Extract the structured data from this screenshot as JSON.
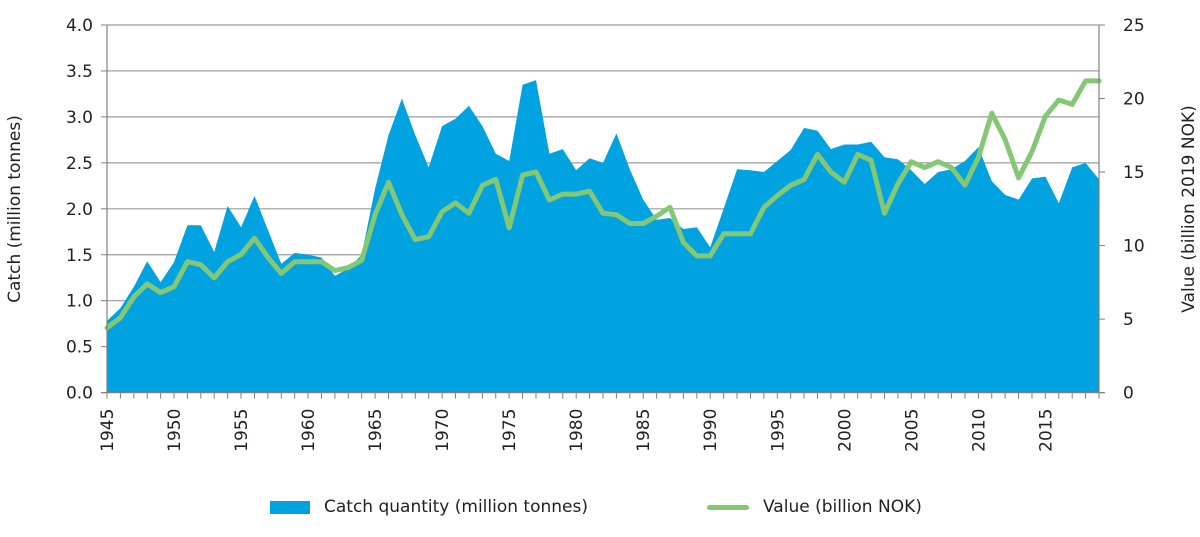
{
  "colors": {
    "area": "#00a3e0",
    "line": "#84c774",
    "grid": "#9b9b9b",
    "axis": "#808080"
  },
  "chart_data": {
    "type": "area",
    "title": "",
    "xlabel": "",
    "ylabel": "Catch (million tonnes)",
    "ylabel_right": "Value (billion 2019 NOK)",
    "ylim": [
      0,
      4.0
    ],
    "ylim_right": [
      0,
      25
    ],
    "yticks": [
      "0.0",
      "0.5",
      "1.0",
      "1.5",
      "2.0",
      "2.5",
      "3.0",
      "3.5",
      "4.0"
    ],
    "yticks_right": [
      "0",
      "5",
      "10",
      "15",
      "20",
      "25"
    ],
    "xticks": [
      "1945",
      "1950",
      "1955",
      "1960",
      "1965",
      "1970",
      "1975",
      "1980",
      "1985",
      "1990",
      "1995",
      "2000",
      "2005",
      "2010",
      "2015"
    ],
    "grid": true,
    "legend_position": "bottom",
    "x": [
      1945,
      1946,
      1947,
      1948,
      1949,
      1950,
      1951,
      1952,
      1953,
      1954,
      1955,
      1956,
      1957,
      1958,
      1959,
      1960,
      1961,
      1962,
      1963,
      1964,
      1965,
      1966,
      1967,
      1968,
      1969,
      1970,
      1971,
      1972,
      1973,
      1974,
      1975,
      1976,
      1977,
      1978,
      1979,
      1980,
      1981,
      1982,
      1983,
      1984,
      1985,
      1986,
      1987,
      1988,
      1989,
      1990,
      1991,
      1992,
      1993,
      1994,
      1995,
      1996,
      1997,
      1998,
      1999,
      2000,
      2001,
      2002,
      2003,
      2004,
      2005,
      2006,
      2007,
      2008,
      2009,
      2010,
      2011,
      2012,
      2013,
      2014,
      2015,
      2016,
      2017,
      2018,
      2019
    ],
    "series": [
      {
        "name": "Catch quantity (million tonnes)",
        "type": "area",
        "axis": "left",
        "values": [
          0.78,
          0.92,
          1.15,
          1.43,
          1.2,
          1.42,
          1.82,
          1.82,
          1.53,
          2.03,
          1.8,
          2.14,
          1.77,
          1.4,
          1.52,
          1.5,
          1.47,
          1.27,
          1.35,
          1.5,
          2.22,
          2.8,
          3.2,
          2.8,
          2.45,
          2.9,
          2.98,
          3.12,
          2.9,
          2.6,
          2.52,
          3.35,
          3.4,
          2.6,
          2.65,
          2.42,
          2.55,
          2.5,
          2.82,
          2.43,
          2.1,
          1.88,
          1.9,
          1.78,
          1.8,
          1.58,
          2.0,
          2.43,
          2.42,
          2.4,
          2.52,
          2.64,
          2.88,
          2.85,
          2.65,
          2.7,
          2.7,
          2.73,
          2.56,
          2.54,
          2.42,
          2.27,
          2.4,
          2.43,
          2.52,
          2.67,
          2.3,
          2.15,
          2.1,
          2.33,
          2.35,
          2.06,
          2.45,
          2.5,
          2.32
        ]
      },
      {
        "name": "Value (billion NOK)",
        "type": "line",
        "axis": "right",
        "values": [
          4.4,
          5.1,
          6.5,
          7.4,
          6.8,
          7.2,
          8.9,
          8.7,
          7.8,
          8.9,
          9.4,
          10.5,
          9.2,
          8.1,
          8.9,
          8.9,
          8.9,
          8.3,
          8.5,
          9.0,
          12.1,
          14.3,
          12.1,
          10.4,
          10.6,
          12.3,
          12.9,
          12.2,
          14.1,
          14.5,
          11.2,
          14.8,
          15.0,
          13.1,
          13.5,
          13.5,
          13.7,
          12.2,
          12.1,
          11.5,
          11.5,
          12.0,
          12.6,
          10.2,
          9.3,
          9.3,
          10.8,
          10.8,
          10.8,
          12.6,
          13.4,
          14.1,
          14.5,
          16.2,
          15.0,
          14.3,
          16.2,
          15.8,
          12.2,
          14.2,
          15.7,
          15.3,
          15.7,
          15.3,
          14.1,
          16.0,
          19.0,
          17.2,
          14.6,
          16.4,
          18.8,
          19.9,
          19.6,
          21.2,
          21.2
        ]
      }
    ]
  },
  "legend": {
    "area_label": "Catch quantity (million tonnes)",
    "line_label": "Value (billion NOK)"
  }
}
